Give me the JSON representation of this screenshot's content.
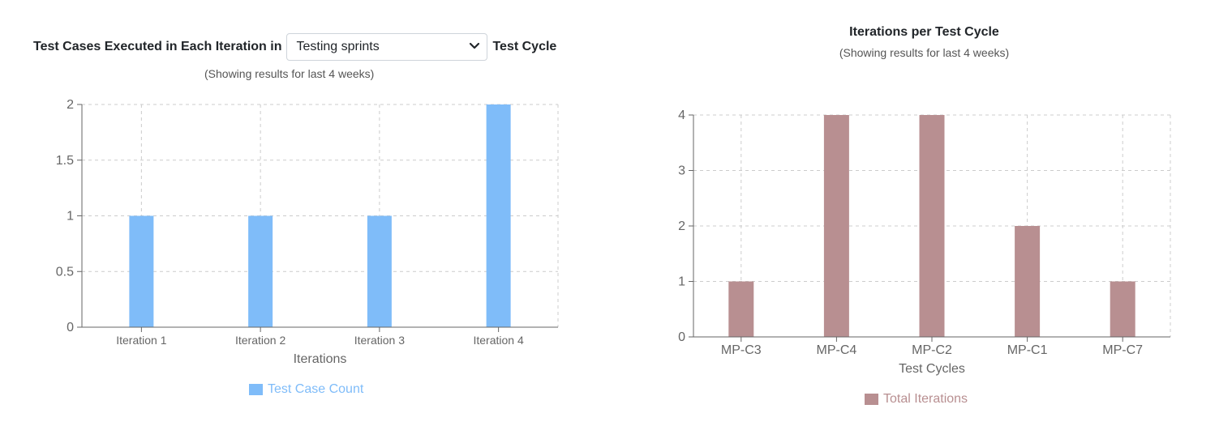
{
  "left": {
    "title_prefix": "Test Cases Executed in Each Iteration in",
    "title_suffix": "Test Cycle",
    "select": {
      "selected": "Testing sprints",
      "icon": "chevron-down-icon"
    },
    "subtitle": "(Showing results for last 4 weeks)",
    "legend_label": "Test Case Count"
  },
  "right": {
    "title": "Iterations per Test Cycle",
    "subtitle": "(Showing results for last 4 weeks)",
    "legend_label": "Total Iterations"
  },
  "chart_data": [
    {
      "type": "bar",
      "title": "Test Cases Executed in Each Iteration in Testing sprints Test Cycle",
      "categories": [
        "Iteration 1",
        "Iteration 2",
        "Iteration 3",
        "Iteration 4"
      ],
      "series": [
        {
          "name": "Test Case Count",
          "values": [
            1,
            1,
            1,
            2
          ],
          "color": "#7fbcf9"
        }
      ],
      "xlabel": "Iterations",
      "ylabel": "",
      "ylim": [
        0,
        2
      ],
      "yticks": [
        "0",
        "0.5",
        "1",
        "1.5",
        "2"
      ],
      "grid": true,
      "legend": "bottom"
    },
    {
      "type": "bar",
      "title": "Iterations per Test Cycle",
      "categories": [
        "MP-C3",
        "MP-C4",
        "MP-C2",
        "MP-C1",
        "MP-C7"
      ],
      "series": [
        {
          "name": "Total Iterations",
          "values": [
            1,
            4,
            4,
            2,
            1
          ],
          "color": "#b88f91"
        }
      ],
      "xlabel": "Test Cycles",
      "ylabel": "",
      "ylim": [
        0,
        4
      ],
      "yticks": [
        "0",
        "1",
        "2",
        "3",
        "4"
      ],
      "grid": true,
      "legend": "bottom"
    }
  ]
}
